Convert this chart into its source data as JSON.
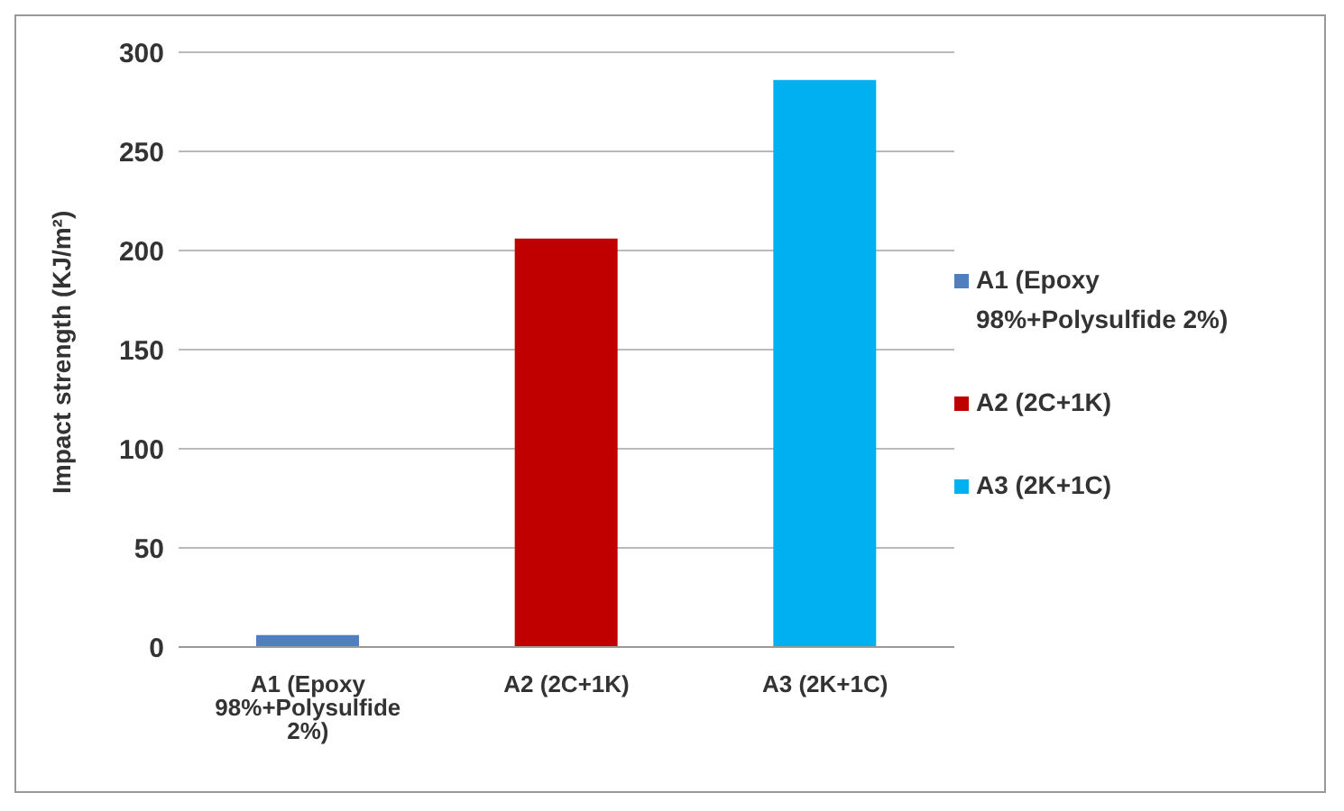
{
  "chart_data": {
    "type": "bar",
    "ylabel": "Impact strength (KJ/m²)",
    "categories": [
      "A1 (Epoxy 98%+Polysulfide 2%)",
      "A2 (2C+1K)",
      "A3 (2K+1C)"
    ],
    "series": [
      {
        "name": "A1 (Epoxy 98%+Polysulfide 2%)",
        "color": "#4f7fbf",
        "values": [
          6,
          null,
          null
        ]
      },
      {
        "name": "A2 (2C+1K)",
        "color": "#c00000",
        "values": [
          null,
          206,
          null
        ]
      },
      {
        "name": "A3 (2K+1C)",
        "color": "#00b0f0",
        "values": [
          null,
          null,
          286
        ]
      }
    ],
    "ylim": [
      0,
      300
    ],
    "yticks": [
      0,
      50,
      100,
      150,
      200,
      250,
      300
    ],
    "grid": "y",
    "legend": "right"
  }
}
